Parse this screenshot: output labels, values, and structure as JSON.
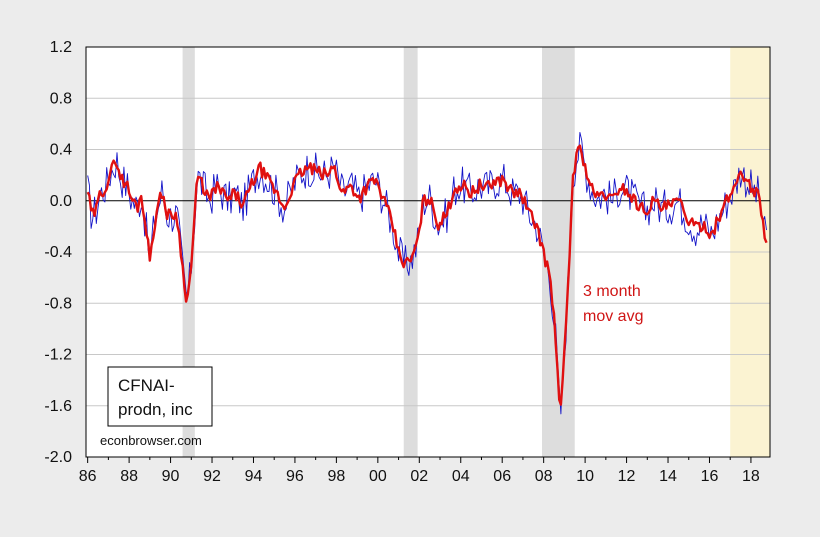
{
  "chart_data": {
    "type": "line",
    "title": "",
    "xlabel": "",
    "ylabel": "",
    "xlim": [
      1985.92,
      2018.92
    ],
    "ylim": [
      -2.0,
      1.2
    ],
    "y_ticks": [
      1.2,
      0.8,
      0.4,
      0.0,
      -0.4,
      -0.8,
      -1.2,
      -1.6,
      -2.0
    ],
    "y_tick_labels": [
      "1.2",
      "0.8",
      "0.4",
      "0.0",
      "-0.4",
      "-0.8",
      "-1.2",
      "-1.6",
      "-2.0"
    ],
    "x_ticks": [
      1986,
      1988,
      1990,
      1992,
      1994,
      1996,
      1998,
      2000,
      2002,
      2004,
      2006,
      2008,
      2010,
      2012,
      2014,
      2016,
      2018
    ],
    "x_tick_labels": [
      "86",
      "88",
      "90",
      "92",
      "94",
      "96",
      "98",
      "00",
      "02",
      "04",
      "06",
      "08",
      "10",
      "12",
      "14",
      "16",
      "18"
    ],
    "grid": true,
    "zero_line": true,
    "recession_shading": [
      {
        "start": 1990.58,
        "end": 1991.17
      },
      {
        "start": 2001.25,
        "end": 2001.92
      },
      {
        "start": 2007.92,
        "end": 2009.5
      }
    ],
    "highlight_shading": {
      "start": 2017.0,
      "end": 2018.92,
      "color": "#fbf3d2"
    },
    "colors": {
      "monthly": "#1414c8",
      "moving_avg": "#e01010",
      "recession": "#dddddd",
      "grid": "#c8c8c8",
      "frame": "#000000",
      "plot_bg": "#ffffff",
      "page_bg": "#ececec"
    },
    "series": [
      {
        "key": "monthly",
        "x_start": 1986.0,
        "x_step": 0.0833333,
        "anchors_x": [
          1986.0,
          1986.2,
          1986.4,
          1986.6,
          1986.9,
          1987.1,
          1987.4,
          1987.6,
          1987.9,
          1988.1,
          1988.4,
          1988.6,
          1988.8,
          1989.0,
          1989.2,
          1989.4,
          1989.6,
          1989.8,
          1990.0,
          1990.3,
          1990.6,
          1990.8,
          1991.0,
          1991.3,
          1991.6,
          1991.9,
          1992.2,
          1992.5,
          1992.8,
          1993.1,
          1993.5,
          1993.9,
          1994.3,
          1994.7,
          1995.1,
          1995.5,
          1995.9,
          1996.3,
          1996.7,
          1997.1,
          1997.5,
          1997.9,
          1998.3,
          1998.7,
          1999.1,
          1999.5,
          1999.9,
          2000.3,
          2000.7,
          2001.0,
          2001.3,
          2001.6,
          2001.9,
          2002.2,
          2002.5,
          2002.9,
          2003.3,
          2003.7,
          2004.1,
          2004.5,
          2004.9,
          2005.3,
          2005.7,
          2006.1,
          2006.5,
          2006.9,
          2007.3,
          2007.7,
          2008.0,
          2008.3,
          2008.6,
          2008.8,
          2009.0,
          2009.2,
          2009.4,
          2009.6,
          2009.8,
          2010.0,
          2010.3,
          2010.6,
          2010.9,
          2011.3,
          2011.7,
          2012.1,
          2012.5,
          2012.9,
          2013.3,
          2013.7,
          2014.1,
          2014.5,
          2014.9,
          2015.3,
          2015.7,
          2016.1,
          2016.5,
          2016.9,
          2017.2,
          2017.5,
          2017.8,
          2018.1,
          2018.4,
          2018.7
        ],
        "anchors_y": [
          0.08,
          -0.12,
          -0.08,
          0.05,
          0.12,
          0.22,
          0.32,
          0.18,
          0.12,
          0.02,
          -0.05,
          0.05,
          -0.2,
          -0.45,
          -0.2,
          -0.05,
          0.08,
          -0.1,
          -0.12,
          -0.1,
          -0.55,
          -0.8,
          -0.5,
          0.2,
          0.1,
          0.0,
          0.12,
          0.06,
          0.0,
          0.06,
          -0.04,
          0.12,
          0.26,
          0.16,
          0.06,
          -0.06,
          0.12,
          0.22,
          0.26,
          0.22,
          0.2,
          0.26,
          0.06,
          0.12,
          0.02,
          0.12,
          0.16,
          0.0,
          -0.18,
          -0.4,
          -0.5,
          -0.46,
          -0.34,
          0.0,
          0.02,
          -0.18,
          -0.12,
          0.1,
          0.12,
          0.06,
          0.12,
          0.1,
          0.16,
          0.16,
          0.06,
          0.06,
          -0.1,
          -0.2,
          -0.42,
          -0.58,
          -1.1,
          -1.72,
          -1.2,
          -0.6,
          0.18,
          0.36,
          0.42,
          0.26,
          0.1,
          0.02,
          0.06,
          0.0,
          0.12,
          0.06,
          -0.02,
          -0.08,
          0.0,
          -0.06,
          -0.04,
          0.0,
          -0.12,
          -0.22,
          -0.18,
          -0.26,
          -0.12,
          0.02,
          0.1,
          0.24,
          0.16,
          0.08,
          0.04,
          -0.3
        ],
        "noise": 0.15
      },
      {
        "key": "moving_avg",
        "x_start": 1986.0,
        "x_step": 0.0833333,
        "anchors_x": [
          1986.0,
          1986.2,
          1986.4,
          1986.6,
          1986.9,
          1987.1,
          1987.4,
          1987.6,
          1987.9,
          1988.1,
          1988.4,
          1988.6,
          1988.8,
          1989.0,
          1989.2,
          1989.4,
          1989.6,
          1989.8,
          1990.0,
          1990.3,
          1990.6,
          1990.8,
          1991.0,
          1991.3,
          1991.6,
          1991.9,
          1992.2,
          1992.5,
          1992.8,
          1993.1,
          1993.5,
          1993.9,
          1994.3,
          1994.7,
          1995.1,
          1995.5,
          1995.9,
          1996.3,
          1996.7,
          1997.1,
          1997.5,
          1997.9,
          1998.3,
          1998.7,
          1999.1,
          1999.5,
          1999.9,
          2000.3,
          2000.7,
          2001.0,
          2001.3,
          2001.6,
          2001.9,
          2002.2,
          2002.5,
          2002.9,
          2003.3,
          2003.7,
          2004.1,
          2004.5,
          2004.9,
          2005.3,
          2005.7,
          2006.1,
          2006.5,
          2006.9,
          2007.3,
          2007.7,
          2008.0,
          2008.3,
          2008.6,
          2008.8,
          2009.0,
          2009.2,
          2009.4,
          2009.6,
          2009.8,
          2010.0,
          2010.3,
          2010.6,
          2010.9,
          2011.3,
          2011.7,
          2012.1,
          2012.5,
          2012.9,
          2013.3,
          2013.7,
          2014.1,
          2014.5,
          2014.9,
          2015.3,
          2015.7,
          2016.1,
          2016.5,
          2016.9,
          2017.2,
          2017.5,
          2017.8,
          2018.1,
          2018.4,
          2018.7
        ],
        "anchors_y": [
          0.08,
          -0.12,
          -0.08,
          0.05,
          0.12,
          0.22,
          0.32,
          0.18,
          0.12,
          0.02,
          -0.05,
          0.05,
          -0.2,
          -0.45,
          -0.2,
          -0.05,
          0.08,
          -0.1,
          -0.12,
          -0.1,
          -0.55,
          -0.8,
          -0.5,
          0.2,
          0.1,
          0.0,
          0.12,
          0.06,
          0.0,
          0.06,
          -0.04,
          0.12,
          0.26,
          0.16,
          0.06,
          -0.06,
          0.12,
          0.22,
          0.26,
          0.22,
          0.2,
          0.26,
          0.06,
          0.12,
          0.02,
          0.12,
          0.16,
          0.0,
          -0.18,
          -0.4,
          -0.5,
          -0.46,
          -0.34,
          0.0,
          0.02,
          -0.18,
          -0.12,
          0.1,
          0.12,
          0.06,
          0.12,
          0.1,
          0.16,
          0.16,
          0.06,
          0.06,
          -0.1,
          -0.2,
          -0.42,
          -0.58,
          -1.1,
          -1.72,
          -1.2,
          -0.6,
          0.18,
          0.36,
          0.42,
          0.26,
          0.1,
          0.02,
          0.06,
          0.0,
          0.12,
          0.06,
          -0.02,
          -0.08,
          0.0,
          -0.06,
          -0.04,
          0.0,
          -0.12,
          -0.22,
          -0.18,
          -0.26,
          -0.12,
          0.02,
          0.1,
          0.24,
          0.16,
          0.08,
          0.04,
          -0.3
        ],
        "noise": 0.05
      }
    ],
    "annotations": {
      "moving_avg_line1": "3 month",
      "moving_avg_line2": "mov avg"
    },
    "legend": {
      "line1": "CFNAI-",
      "line2": "prodn, inc"
    },
    "source": "econbrowser.com"
  }
}
